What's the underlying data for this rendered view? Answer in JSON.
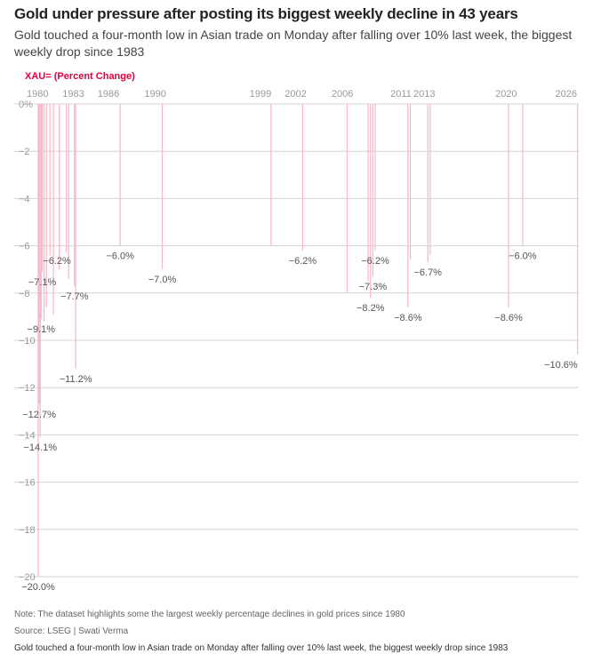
{
  "title": "Gold under pressure after posting its biggest weekly decline in 43 years",
  "subtitle": "Gold touched a four-month low in Asian trade on Monday after falling over 10% last week, the biggest weekly drop since 1983",
  "series_label": "XAU= (Percent Change)",
  "note": "Note: The dataset highlights some the largest weekly percentage declines in gold prices since 1980",
  "source": "Source: LSEG | Swati Verma",
  "caption": "Gold touched a four-month low in Asian trade on Monday after falling over 10% last week, the biggest weekly drop since 1983",
  "colors": {
    "bar": "#f7b7c6",
    "grid": "#d4d4d4",
    "axis_text": "#999999",
    "label_text": "#555555",
    "accent": "#e4003b"
  },
  "chart_data": {
    "type": "bar",
    "title": "",
    "xlabel": "",
    "ylabel": "XAU= (Percent Change)",
    "ylim": [
      -20,
      0
    ],
    "grid": true,
    "y_ticks": [
      0,
      -2,
      -4,
      -6,
      -8,
      -10,
      -12,
      -14,
      -16,
      -18,
      -20
    ],
    "y_tick_labels": [
      "0%",
      "−2",
      "−4",
      "−6",
      "−8",
      "−10",
      "−12",
      "−14",
      "−16",
      "−18",
      "−20"
    ],
    "x_ticks": [
      1980,
      1983,
      1986,
      1990,
      1999,
      2002,
      2006,
      2011,
      2013,
      2020,
      2026
    ],
    "x_tick_labels": [
      "1980",
      "1983",
      "1986",
      "1990",
      "1999",
      "2002",
      "2006",
      "2011",
      "2013",
      "2020",
      "2026"
    ],
    "bars": [
      {
        "x": 1980.0,
        "value": -20.0
      },
      {
        "x": 1980.08,
        "value": -12.7
      },
      {
        "x": 1980.17,
        "value": -14.1
      },
      {
        "x": 1980.25,
        "value": -9.1
      },
      {
        "x": 1980.35,
        "value": -7.1
      },
      {
        "x": 1980.5,
        "value": -9.2
      },
      {
        "x": 1980.7,
        "value": -8.6
      },
      {
        "x": 1981.0,
        "value": -6.4
      },
      {
        "x": 1981.3,
        "value": -8.9
      },
      {
        "x": 1981.8,
        "value": -7.0
      },
      {
        "x": 1982.4,
        "value": -6.3
      },
      {
        "x": 1982.6,
        "value": -7.4
      },
      {
        "x": 1983.1,
        "value": -7.7
      },
      {
        "x": 1983.2,
        "value": -11.2
      },
      {
        "x": 1987.0,
        "value": -6.0
      },
      {
        "x": 1990.6,
        "value": -7.0
      },
      {
        "x": 1999.9,
        "value": -6.0
      },
      {
        "x": 2002.6,
        "value": -6.2
      },
      {
        "x": 2006.4,
        "value": -8.0
      },
      {
        "x": 2008.2,
        "value": -7.5
      },
      {
        "x": 2008.4,
        "value": -8.2
      },
      {
        "x": 2008.6,
        "value": -7.3
      },
      {
        "x": 2008.8,
        "value": -6.2
      },
      {
        "x": 2011.6,
        "value": -8.6
      },
      {
        "x": 2011.8,
        "value": -6.6
      },
      {
        "x": 2013.3,
        "value": -6.7
      },
      {
        "x": 2013.5,
        "value": -6.4
      },
      {
        "x": 2020.2,
        "value": -8.6
      },
      {
        "x": 2021.4,
        "value": -6.0
      },
      {
        "x": 2026.1,
        "value": -10.6
      }
    ],
    "data_labels": [
      {
        "text": "−20.0%",
        "x": 1980.0,
        "value": -20.0,
        "anchor": "middle"
      },
      {
        "text": "−14.1%",
        "x": 1980.17,
        "value": -14.1,
        "anchor": "middle"
      },
      {
        "text": "−12.7%",
        "x": 1980.08,
        "value": -12.7,
        "anchor": "middle"
      },
      {
        "text": "−11.2%",
        "x": 1983.2,
        "value": -11.2,
        "anchor": "middle"
      },
      {
        "text": "−9.1%",
        "x": 1980.25,
        "value": -9.1,
        "anchor": "middle"
      },
      {
        "text": "−7.7%",
        "x": 1983.1,
        "value": -7.7,
        "anchor": "middle"
      },
      {
        "text": "−7.1%",
        "x": 1980.35,
        "value": -7.1,
        "anchor": "middle"
      },
      {
        "text": "−6.2%",
        "x": 1981.6,
        "value": -6.2,
        "anchor": "middle"
      },
      {
        "text": "−6.0%",
        "x": 1987.0,
        "value": -6.0,
        "anchor": "middle"
      },
      {
        "text": "−7.0%",
        "x": 1990.6,
        "value": -7.0,
        "anchor": "middle"
      },
      {
        "text": "−6.2%",
        "x": 2002.6,
        "value": -6.2,
        "anchor": "middle"
      },
      {
        "text": "−6.2%",
        "x": 2008.8,
        "value": -6.2,
        "anchor": "middle"
      },
      {
        "text": "−7.3%",
        "x": 2008.6,
        "value": -7.3,
        "anchor": "middle"
      },
      {
        "text": "−8.2%",
        "x": 2008.4,
        "value": -8.2,
        "anchor": "middle"
      },
      {
        "text": "−8.6%",
        "x": 2011.6,
        "value": -8.6,
        "anchor": "middle"
      },
      {
        "text": "−6.7%",
        "x": 2013.3,
        "value": -6.7,
        "anchor": "middle"
      },
      {
        "text": "−6.0%",
        "x": 2021.4,
        "value": -6.0,
        "anchor": "middle"
      },
      {
        "text": "−8.6%",
        "x": 2020.2,
        "value": -8.6,
        "anchor": "middle"
      },
      {
        "text": "−10.6%",
        "x": 2026.1,
        "value": -10.6,
        "anchor": "end"
      }
    ]
  }
}
